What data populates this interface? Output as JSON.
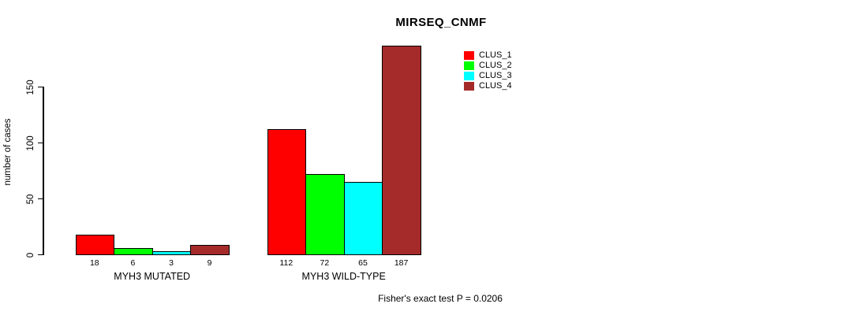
{
  "title": "MIRSEQ_CNMF",
  "y_axis": {
    "label": "number of cases",
    "ticks": [
      0,
      50,
      100,
      150
    ]
  },
  "footer": "Fisher's exact test P = 0.0206",
  "legend": {
    "entries": [
      {
        "label": "CLUS_1",
        "color": "#FF0000"
      },
      {
        "label": "CLUS_2",
        "color": "#00FF00"
      },
      {
        "label": "CLUS_3",
        "color": "#00FFFF"
      },
      {
        "label": "CLUS_4",
        "color": "#A52A2A"
      }
    ]
  },
  "chart_data": {
    "type": "bar",
    "title": "MIRSEQ_CNMF",
    "xlabel": "",
    "ylabel": "number of cases",
    "ylim": [
      0,
      150
    ],
    "yticks": [
      0,
      50,
      100,
      150
    ],
    "grid": false,
    "legend_position": "top-right",
    "categories": [
      "MYH3 MUTATED",
      "MYH3 WILD-TYPE"
    ],
    "series": [
      {
        "name": "CLUS_1",
        "color": "#FF0000",
        "values": [
          18,
          112
        ]
      },
      {
        "name": "CLUS_2",
        "color": "#00FF00",
        "values": [
          6,
          72
        ]
      },
      {
        "name": "CLUS_3",
        "color": "#00FFFF",
        "values": [
          3,
          65
        ]
      },
      {
        "name": "CLUS_4",
        "color": "#A52A2A",
        "values": [
          9,
          187
        ]
      }
    ],
    "bar_value_labels": [
      [
        18,
        6,
        3,
        9
      ],
      [
        112,
        72,
        65,
        187
      ]
    ],
    "annotation": "Fisher's exact test P = 0.0206"
  }
}
